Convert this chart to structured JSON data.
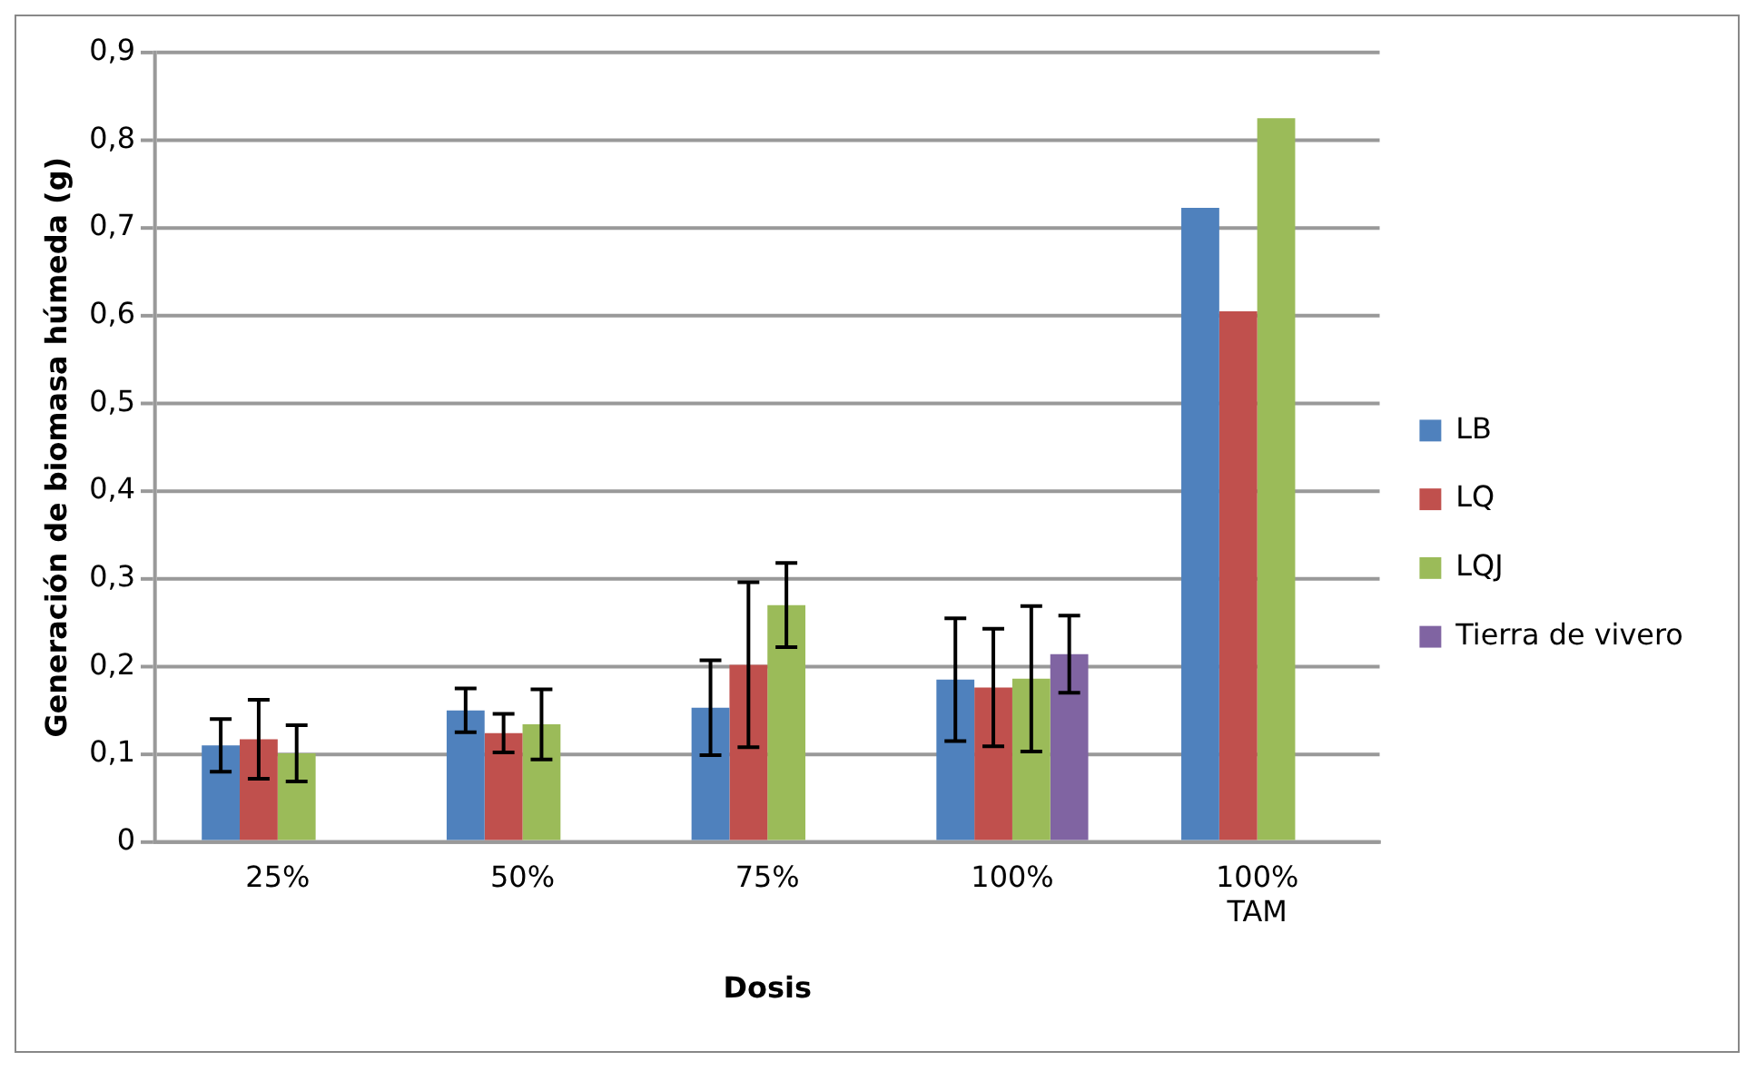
{
  "chart_data": {
    "type": "bar",
    "xlabel": "Dosis",
    "ylabel": "Generación de biomasa húmeda (g)",
    "categories": [
      "25%",
      "50%",
      "75%",
      "100%",
      "100% TAM"
    ],
    "series": [
      {
        "name": "LB",
        "color": "#4f81bd",
        "values": [
          0.11,
          0.15,
          0.153,
          0.185,
          0.723
        ],
        "errors": [
          0.03,
          0.025,
          0.054,
          0.07,
          null
        ]
      },
      {
        "name": "LQ",
        "color": "#c0504d",
        "values": [
          0.117,
          0.124,
          0.202,
          0.176,
          0.605
        ],
        "errors": [
          0.045,
          0.022,
          0.094,
          0.067,
          null
        ]
      },
      {
        "name": "LQJ",
        "color": "#9bbb59",
        "values": [
          0.101,
          0.134,
          0.27,
          0.186,
          0.825
        ],
        "errors": [
          0.032,
          0.04,
          0.048,
          0.083,
          null
        ]
      },
      {
        "name": "Tierra de vivero",
        "color": "#8064a2",
        "values": [
          null,
          null,
          null,
          0.214,
          null
        ],
        "errors": [
          null,
          null,
          null,
          0.044,
          null
        ]
      }
    ],
    "ylim": [
      0,
      0.9
    ],
    "yticks": [
      0,
      {
        "value": 0.1,
        "label": "0,1"
      },
      {
        "value": 0.2,
        "label": "0,2"
      },
      {
        "value": 0.3,
        "label": "0,3"
      },
      {
        "value": 0.4,
        "label": "0,4"
      },
      {
        "value": 0.5,
        "label": "0,5"
      },
      {
        "value": 0.6,
        "label": "0,6"
      },
      {
        "value": 0.7,
        "label": "0,7"
      },
      {
        "value": 0.8,
        "label": "0,8"
      },
      {
        "value": 0.9,
        "label": "0,9"
      }
    ],
    "grid": "y",
    "legend": "right"
  }
}
